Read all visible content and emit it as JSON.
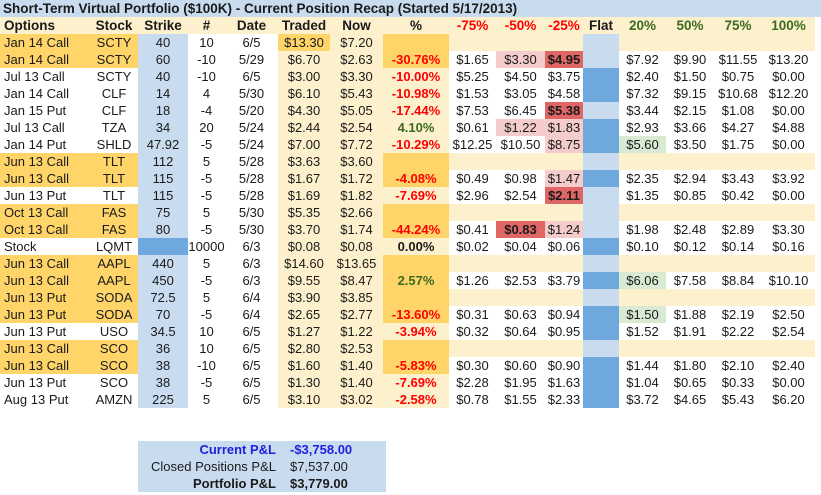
{
  "title": "Short-Term Virtual Portfolio ($100K) - Current Position Recap (Started 5/17/2013)",
  "headers": {
    "options": "Options",
    "stock": "Stock",
    "strike": "Strike",
    "num": "#",
    "date": "Date",
    "traded": "Traded",
    "now": "Now",
    "pct": "%",
    "m75": "-75%",
    "m50": "-50%",
    "m25": "-25%",
    "flat": "Flat",
    "p20": "20%",
    "p50": "50%",
    "p75": "75%",
    "p100": "100%"
  },
  "colors": {
    "title_bg": "#c9dcef",
    "header_bg": "#fdf0cc",
    "highlight": "#ffd56a",
    "flat_dark": "#6fa8dc",
    "hot": "#e06666",
    "warm": "#f4cccc",
    "green_cell": "#d9ead3",
    "negative": "#ff0000",
    "positive": "#3a6b1e",
    "current_pl": "#1f1fe0"
  },
  "rows": [
    {
      "options": "Jan 14 Call",
      "stock": "SCTY",
      "strike": "40",
      "num": "10",
      "date": "6/5",
      "traded": "$13.30",
      "now": "$7.20",
      "pct": "",
      "m75": "",
      "m50": "",
      "m25": "",
      "p20": "",
      "p50": "",
      "p75": "",
      "p100": ""
    },
    {
      "options": "Jan 14 Call",
      "stock": "SCTY",
      "strike": "60",
      "num": "-10",
      "date": "5/29",
      "traded": "$6.70",
      "now": "$2.63",
      "pct": "-30.76%",
      "m75": "$1.65",
      "m50": "$3.30",
      "m25": "$4.95",
      "p20": "$7.92",
      "p50": "$9.90",
      "p75": "$11.55",
      "p100": "$13.20"
    },
    {
      "options": "Jul 13 Call",
      "stock": "SCTY",
      "strike": "40",
      "num": "-10",
      "date": "6/5",
      "traded": "$3.00",
      "now": "$3.30",
      "pct": "-10.00%",
      "m75": "$5.25",
      "m50": "$4.50",
      "m25": "$3.75",
      "p20": "$2.40",
      "p50": "$1.50",
      "p75": "$0.75",
      "p100": "$0.00"
    },
    {
      "options": "Jan 14 Call",
      "stock": "CLF",
      "strike": "14",
      "num": "4",
      "date": "5/30",
      "traded": "$6.10",
      "now": "$5.43",
      "pct": "-10.98%",
      "m75": "$1.53",
      "m50": "$3.05",
      "m25": "$4.58",
      "p20": "$7.32",
      "p50": "$9.15",
      "p75": "$10.68",
      "p100": "$12.20"
    },
    {
      "options": "Jan 15 Put",
      "stock": "CLF",
      "strike": "18",
      "num": "-4",
      "date": "5/20",
      "traded": "$4.30",
      "now": "$5.05",
      "pct": "-17.44%",
      "m75": "$7.53",
      "m50": "$6.45",
      "m25": "$5.38",
      "p20": "$3.44",
      "p50": "$2.15",
      "p75": "$1.08",
      "p100": "$0.00"
    },
    {
      "options": "Jul 13 Call",
      "stock": "TZA",
      "strike": "34",
      "num": "20",
      "date": "5/24",
      "traded": "$2.44",
      "now": "$2.54",
      "pct": "4.10%",
      "m75": "$0.61",
      "m50": "$1.22",
      "m25": "$1.83",
      "p20": "$2.93",
      "p50": "$3.66",
      "p75": "$4.27",
      "p100": "$4.88"
    },
    {
      "options": "Jan 14 Put",
      "stock": "SHLD",
      "strike": "47.92",
      "num": "-5",
      "date": "5/24",
      "traded": "$7.00",
      "now": "$7.72",
      "pct": "-10.29%",
      "m75": "$12.25",
      "m50": "$10.50",
      "m25": "$8.75",
      "p20": "$5.60",
      "p50": "$3.50",
      "p75": "$1.75",
      "p100": "$0.00"
    },
    {
      "options": "Jun 13 Call",
      "stock": "TLT",
      "strike": "112",
      "num": "5",
      "date": "5/28",
      "traded": "$3.63",
      "now": "$3.60",
      "pct": "",
      "m75": "",
      "m50": "",
      "m25": "",
      "p20": "",
      "p50": "",
      "p75": "",
      "p100": ""
    },
    {
      "options": "Jun 13 Call",
      "stock": "TLT",
      "strike": "115",
      "num": "-5",
      "date": "5/28",
      "traded": "$1.67",
      "now": "$1.72",
      "pct": "-4.08%",
      "m75": "$0.49",
      "m50": "$0.98",
      "m25": "$1.47",
      "p20": "$2.35",
      "p50": "$2.94",
      "p75": "$3.43",
      "p100": "$3.92"
    },
    {
      "options": "Jun 13 Put",
      "stock": "TLT",
      "strike": "115",
      "num": "-5",
      "date": "5/28",
      "traded": "$1.69",
      "now": "$1.82",
      "pct": "-7.69%",
      "m75": "$2.96",
      "m50": "$2.54",
      "m25": "$2.11",
      "p20": "$1.35",
      "p50": "$0.85",
      "p75": "$0.42",
      "p100": "$0.00"
    },
    {
      "options": "Oct 13 Call",
      "stock": "FAS",
      "strike": "75",
      "num": "5",
      "date": "5/30",
      "traded": "$5.35",
      "now": "$2.66",
      "pct": "",
      "m75": "",
      "m50": "",
      "m25": "",
      "p20": "",
      "p50": "",
      "p75": "",
      "p100": ""
    },
    {
      "options": "Oct 13 Call",
      "stock": "FAS",
      "strike": "80",
      "num": "-5",
      "date": "5/30",
      "traded": "$3.70",
      "now": "$1.74",
      "pct": "-44.24%",
      "m75": "$0.41",
      "m50": "$0.83",
      "m25": "$1.24",
      "p20": "$1.98",
      "p50": "$2.48",
      "p75": "$2.89",
      "p100": "$3.30"
    },
    {
      "options": "Stock",
      "stock": "LQMT",
      "strike": "",
      "num": "10000",
      "date": "6/3",
      "traded": "$0.08",
      "now": "$0.08",
      "pct": "0.00%",
      "m75": "$0.02",
      "m50": "$0.04",
      "m25": "$0.06",
      "p20": "$0.10",
      "p50": "$0.12",
      "p75": "$0.14",
      "p100": "$0.16"
    },
    {
      "options": "Jun 13 Call",
      "stock": "AAPL",
      "strike": "440",
      "num": "5",
      "date": "6/3",
      "traded": "$14.60",
      "now": "$13.65",
      "pct": "",
      "m75": "",
      "m50": "",
      "m25": "",
      "p20": "",
      "p50": "",
      "p75": "",
      "p100": ""
    },
    {
      "options": "Jun 13 Call",
      "stock": "AAPL",
      "strike": "450",
      "num": "-5",
      "date": "6/3",
      "traded": "$9.55",
      "now": "$8.47",
      "pct": "2.57%",
      "m75": "$1.26",
      "m50": "$2.53",
      "m25": "$3.79",
      "p20": "$6.06",
      "p50": "$7.58",
      "p75": "$8.84",
      "p100": "$10.10"
    },
    {
      "options": "Jun 13 Put",
      "stock": "SODA",
      "strike": "72.5",
      "num": "5",
      "date": "6/4",
      "traded": "$3.90",
      "now": "$3.85",
      "pct": "",
      "m75": "",
      "m50": "",
      "m25": "",
      "p20": "",
      "p50": "",
      "p75": "",
      "p100": ""
    },
    {
      "options": "Jun 13 Put",
      "stock": "SODA",
      "strike": "70",
      "num": "-5",
      "date": "6/4",
      "traded": "$2.65",
      "now": "$2.77",
      "pct": "-13.60%",
      "m75": "$0.31",
      "m50": "$0.63",
      "m25": "$0.94",
      "p20": "$1.50",
      "p50": "$1.88",
      "p75": "$2.19",
      "p100": "$2.50"
    },
    {
      "options": "Jun 13 Put",
      "stock": "USO",
      "strike": "34.5",
      "num": "10",
      "date": "6/5",
      "traded": "$1.27",
      "now": "$1.22",
      "pct": "-3.94%",
      "m75": "$0.32",
      "m50": "$0.64",
      "m25": "$0.95",
      "p20": "$1.52",
      "p50": "$1.91",
      "p75": "$2.22",
      "p100": "$2.54"
    },
    {
      "options": "Jun 13 Call",
      "stock": "SCO",
      "strike": "36",
      "num": "10",
      "date": "6/5",
      "traded": "$2.80",
      "now": "$2.53",
      "pct": "",
      "m75": "",
      "m50": "",
      "m25": "",
      "p20": "",
      "p50": "",
      "p75": "",
      "p100": ""
    },
    {
      "options": "Jun 13 Call",
      "stock": "SCO",
      "strike": "38",
      "num": "-10",
      "date": "6/5",
      "traded": "$1.60",
      "now": "$1.40",
      "pct": "-5.83%",
      "m75": "$0.30",
      "m50": "$0.60",
      "m25": "$0.90",
      "p20": "$1.44",
      "p50": "$1.80",
      "p75": "$2.10",
      "p100": "$2.40"
    },
    {
      "options": "Jun 13 Put",
      "stock": "SCO",
      "strike": "38",
      "num": "-5",
      "date": "6/5",
      "traded": "$1.30",
      "now": "$1.40",
      "pct": "-7.69%",
      "m75": "$2.28",
      "m50": "$1.95",
      "m25": "$1.63",
      "p20": "$1.04",
      "p50": "$0.65",
      "p75": "$0.33",
      "p100": "$0.00"
    },
    {
      "options": "Aug 13 Put",
      "stock": "AMZN",
      "strike": "225",
      "num": "5",
      "date": "6/5",
      "traded": "$3.10",
      "now": "$3.02",
      "pct": "-2.58%",
      "m75": "$0.78",
      "m50": "$1.55",
      "m25": "$2.33",
      "p20": "$3.72",
      "p50": "$4.65",
      "p75": "$5.43",
      "p100": "$6.20"
    }
  ],
  "summary": {
    "current_label": "Current P&L",
    "current_value": "-$3,758.00",
    "closed_label": "Closed Positions P&L",
    "closed_value": "$7,537.00",
    "portfolio_label": "Portfolio P&L",
    "portfolio_value": "$3,779.00"
  }
}
